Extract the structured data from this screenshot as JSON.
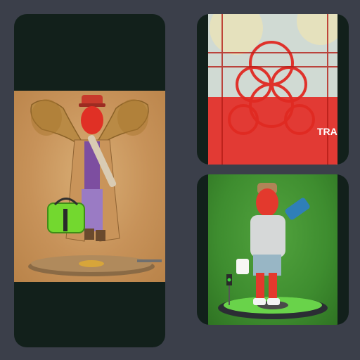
{
  "gallery": {
    "items": [
      {
        "subject": "figure-with-gramophone-horns",
        "background": "#c89159"
      },
      {
        "subject": "red-stamp-pattern-poster",
        "background": "#e23a34"
      },
      {
        "subject": "figure-with-skateboard-green",
        "background": "#3f8f31"
      }
    ]
  },
  "poster": {
    "corner_text": "TRA"
  }
}
